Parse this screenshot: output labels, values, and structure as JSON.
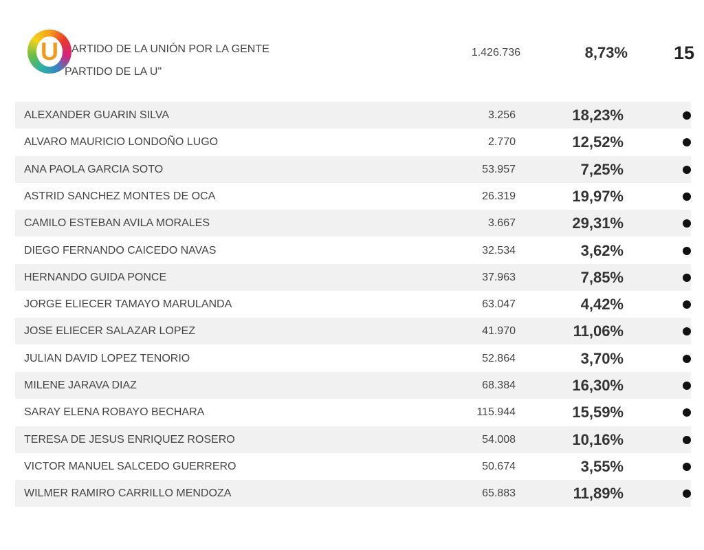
{
  "header": {
    "party_line1": "ARTIDO DE LA UNIÓN POR LA GENTE",
    "party_line2": "PARTIDO DE LA U\"",
    "votes": "1.426.736",
    "percent": "8,73%",
    "seats": "15"
  },
  "table": {
    "rows": [
      [
        "ALEXANDER GUARIN SILVA",
        "3.256",
        "18,23%"
      ],
      [
        "ALVARO MAURICIO LONDOÑO LUGO",
        "2.770",
        "12,52%"
      ],
      [
        "ANA PAOLA GARCIA SOTO",
        "53.957",
        "7,25%"
      ],
      [
        "ASTRID SANCHEZ MONTES DE OCA",
        "26.319",
        "19,97%"
      ],
      [
        "CAMILO ESTEBAN AVILA MORALES",
        "3.667",
        "29,31%"
      ],
      [
        "DIEGO FERNANDO CAICEDO NAVAS",
        "32.534",
        "3,62%"
      ],
      [
        "HERNANDO GUIDA PONCE",
        "37.963",
        "7,85%"
      ],
      [
        "JORGE ELIECER TAMAYO MARULANDA",
        "63.047",
        "4,42%"
      ],
      [
        "JOSE ELIECER SALAZAR LOPEZ",
        "41.970",
        "11,06%"
      ],
      [
        "JULIAN DAVID LOPEZ TENORIO",
        "52.864",
        "3,70%"
      ],
      [
        "MILENE JARAVA DIAZ",
        "68.384",
        "16,30%"
      ],
      [
        "SARAY ELENA ROBAYO BECHARA",
        "115.944",
        "15,59%"
      ],
      [
        "TERESA DE JESUS ENRIQUEZ ROSERO",
        "54.008",
        "10,16%"
      ],
      [
        "VICTOR MANUEL SALCEDO GUERRERO",
        "50.674",
        "3,55%"
      ],
      [
        "WILMER RAMIRO CARRILLO MENDOZA",
        "65.883",
        "11,89%"
      ]
    ]
  }
}
